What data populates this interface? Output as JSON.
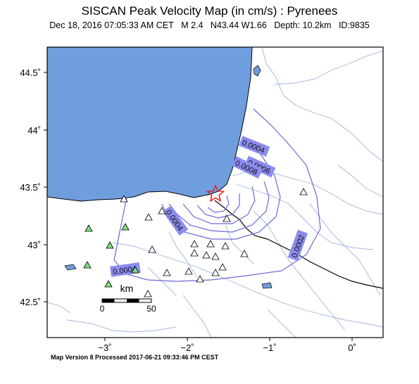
{
  "title": "SISCAN Peak Velocity Map (in cm/s) : Pyrenees",
  "event": {
    "date": "Dec 18, 2016 07:05:33 AM CET",
    "magnitude": "M 2.4",
    "location": "N43.44 W1.66",
    "depth": "Depth: 10.2km",
    "id": "ID:9835"
  },
  "footer": "Map Version 8 Processed 2017-06-21 09:33:46 PM CEST",
  "axes": {
    "lat_ticks": [
      "44.5˚",
      "44˚",
      "43.5˚",
      "43˚",
      "42.5˚"
    ],
    "lon_ticks": [
      "−3˚",
      "−2˚",
      "−1˚",
      "0˚"
    ]
  },
  "scale_bar": {
    "unit": "km",
    "labels": [
      "0",
      "50"
    ]
  },
  "contours": [
    {
      "label": "0.0004",
      "value": 0.0004
    },
    {
      "label": "0.0006",
      "value": 0.0006
    },
    {
      "label": "0.0008",
      "value": 0.0008
    },
    {
      "label": "0.0004",
      "value": 0.0004
    },
    {
      "label": "0.0004",
      "value": 0.0004
    },
    {
      "label": "0.0002",
      "value": 0.0002
    }
  ],
  "colors": {
    "sea": "#6f9ede",
    "contour": "#6a6ad8",
    "contour_label_bg": "#8c8cf0",
    "river": "#a0b4e0",
    "border": "#000000",
    "station_green": "#7ee07e",
    "station_white": "#ffffff",
    "epicenter": "#e02020"
  },
  "icons": {
    "epicenter": "star-icon",
    "station": "triangle-icon"
  }
}
